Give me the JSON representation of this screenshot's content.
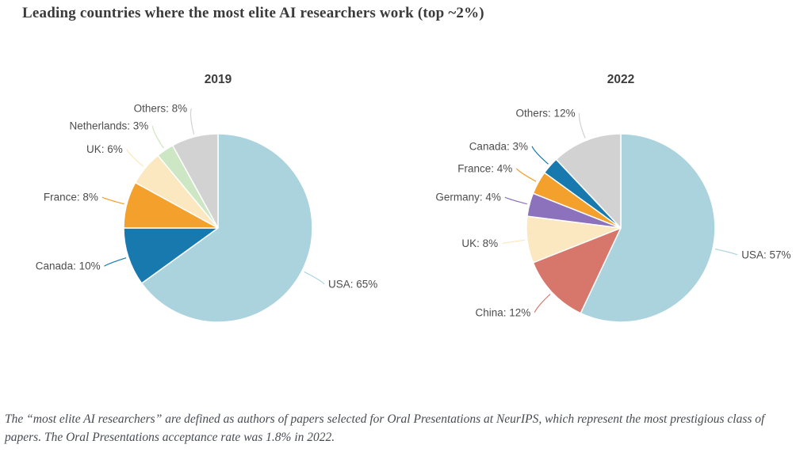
{
  "page": {
    "title": "Leading countries where the most elite AI researchers work (top ~2%)",
    "footnote": "The “most elite AI researchers” are defined as authors of papers selected for Oral Presentations at NeurIPS, which represent the most prestigious class of papers. The Oral Presentations acceptance rate was 1.8% in 2022."
  },
  "chart_data": [
    {
      "type": "pie",
      "title": "2019",
      "label_format": "{label}: {value}%",
      "start_angle": "12-oclock",
      "direction": "clockwise",
      "slices": [
        {
          "label": "USA",
          "value": 65,
          "color": "#ABD3DE"
        },
        {
          "label": "Canada",
          "value": 10,
          "color": "#1879AF"
        },
        {
          "label": "France",
          "value": 8,
          "color": "#F4A02C"
        },
        {
          "label": "UK",
          "value": 6,
          "color": "#FBE7C0"
        },
        {
          "label": "Netherlands",
          "value": 3,
          "color": "#CDE7C4"
        },
        {
          "label": "Others",
          "value": 8,
          "color": "#D2D2D2"
        }
      ]
    },
    {
      "type": "pie",
      "title": "2022",
      "label_format": "{label}: {value}%",
      "start_angle": "12-oclock",
      "direction": "clockwise",
      "slices": [
        {
          "label": "USA",
          "value": 57,
          "color": "#ABD3DE"
        },
        {
          "label": "China",
          "value": 12,
          "color": "#D7776B"
        },
        {
          "label": "UK",
          "value": 8,
          "color": "#FBE7C0"
        },
        {
          "label": "Germany",
          "value": 4,
          "color": "#8C72BC"
        },
        {
          "label": "France",
          "value": 4,
          "color": "#F4A02C"
        },
        {
          "label": "Canada",
          "value": 3,
          "color": "#1879AF"
        },
        {
          "label": "Others",
          "value": 12,
          "color": "#D2D2D2"
        }
      ]
    }
  ],
  "text_colors": {
    "title": "#3A3A3A",
    "year_labels": "#3C3C3C",
    "slice_labels": "#4D4D4D",
    "footnote": "#474B52"
  }
}
